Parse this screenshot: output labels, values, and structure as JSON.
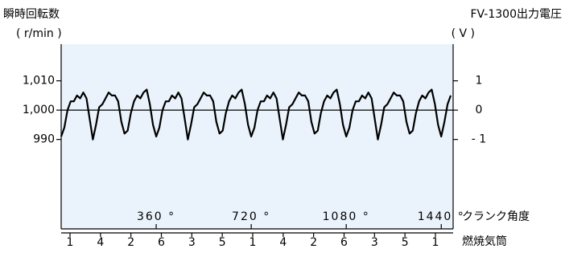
{
  "chart_data": {
    "type": "line",
    "ylabel": "瞬時回転数",
    "ylabel_unit": "( r/min )",
    "y2label": "FV-1300出力電圧",
    "y2label_unit": "( V )",
    "xlabel": "クランク角度",
    "x2label": "燃焼気筒",
    "xlim": [
      0,
      1485
    ],
    "xticks": [
      {
        "value": 360,
        "label": "360 °"
      },
      {
        "value": 720,
        "label": "720 °"
      },
      {
        "value": 1080,
        "label": "1080 °"
      },
      {
        "value": 1440,
        "label": "1440 °"
      }
    ],
    "x2_categories": [
      "1",
      "4",
      "2",
      "6",
      "3",
      "5",
      "1",
      "4",
      "2",
      "6",
      "3",
      "5",
      "1"
    ],
    "ylim": [
      959.5,
      1022.5
    ],
    "yticks": [
      {
        "value": 1010,
        "label": "1,010"
      },
      {
        "value": 1000,
        "label": "1,000"
      },
      990
    ],
    "y2lim": [
      -4.05,
      2.25
    ],
    "y2ticks": [
      1,
      0,
      {
        "value": -1,
        "label": "- 1"
      }
    ],
    "hline": 1000,
    "background": "#eaf3fb",
    "series": [
      {
        "color": "#000000",
        "x": [
          0,
          12,
          24,
          36,
          48,
          60,
          72,
          84,
          96,
          108,
          120,
          132,
          144,
          156,
          168,
          180,
          192,
          204,
          216,
          228,
          240,
          252,
          264,
          276,
          288,
          300,
          312,
          324,
          336,
          348,
          360,
          372,
          384,
          396,
          408,
          420,
          432,
          444,
          456,
          468,
          480,
          492,
          504,
          516,
          528,
          540,
          552,
          564,
          576,
          588,
          600,
          612,
          624,
          636,
          648,
          660,
          672,
          684,
          696,
          708,
          720,
          732,
          744,
          756,
          768,
          780,
          792,
          804,
          816,
          828,
          840,
          852,
          864,
          876,
          888,
          900,
          912,
          924,
          936,
          948,
          960,
          972,
          984,
          996,
          1008,
          1020,
          1032,
          1044,
          1056,
          1068,
          1080,
          1092,
          1104,
          1116,
          1128,
          1140,
          1152,
          1164,
          1176,
          1188,
          1200,
          1212,
          1224,
          1236,
          1248,
          1260,
          1272,
          1284,
          1296,
          1308,
          1320,
          1332,
          1344,
          1356,
          1368,
          1380,
          1392,
          1404,
          1416,
          1428,
          1440,
          1452,
          1464,
          1476
        ],
        "values": [
          991,
          994,
          1000,
          1003,
          1003,
          1005,
          1004,
          1006,
          1004,
          997,
          990,
          995,
          1001,
          1002,
          1004,
          1006,
          1005,
          1005,
          1003,
          996,
          992,
          993,
          999,
          1003,
          1005,
          1004,
          1006,
          1007,
          1002,
          995,
          991,
          994,
          1000,
          1003,
          1003,
          1005,
          1004,
          1006,
          1004,
          997,
          990,
          995,
          1001,
          1002,
          1004,
          1006,
          1005,
          1005,
          1003,
          996,
          992,
          993,
          999,
          1003,
          1005,
          1004,
          1006,
          1007,
          1002,
          995,
          991,
          994,
          1000,
          1003,
          1003,
          1005,
          1004,
          1006,
          1004,
          997,
          990,
          995,
          1001,
          1002,
          1004,
          1006,
          1005,
          1005,
          1003,
          996,
          992,
          993,
          999,
          1003,
          1005,
          1004,
          1006,
          1007,
          1002,
          995,
          991,
          994,
          1000,
          1003,
          1003,
          1005,
          1004,
          1006,
          1004,
          997,
          990,
          995,
          1001,
          1002,
          1004,
          1006,
          1005,
          1005,
          1003,
          996,
          992,
          993,
          999,
          1003,
          1005,
          1004,
          1006,
          1007,
          1002,
          995,
          991,
          996,
          1002,
          1005
        ]
      }
    ]
  }
}
